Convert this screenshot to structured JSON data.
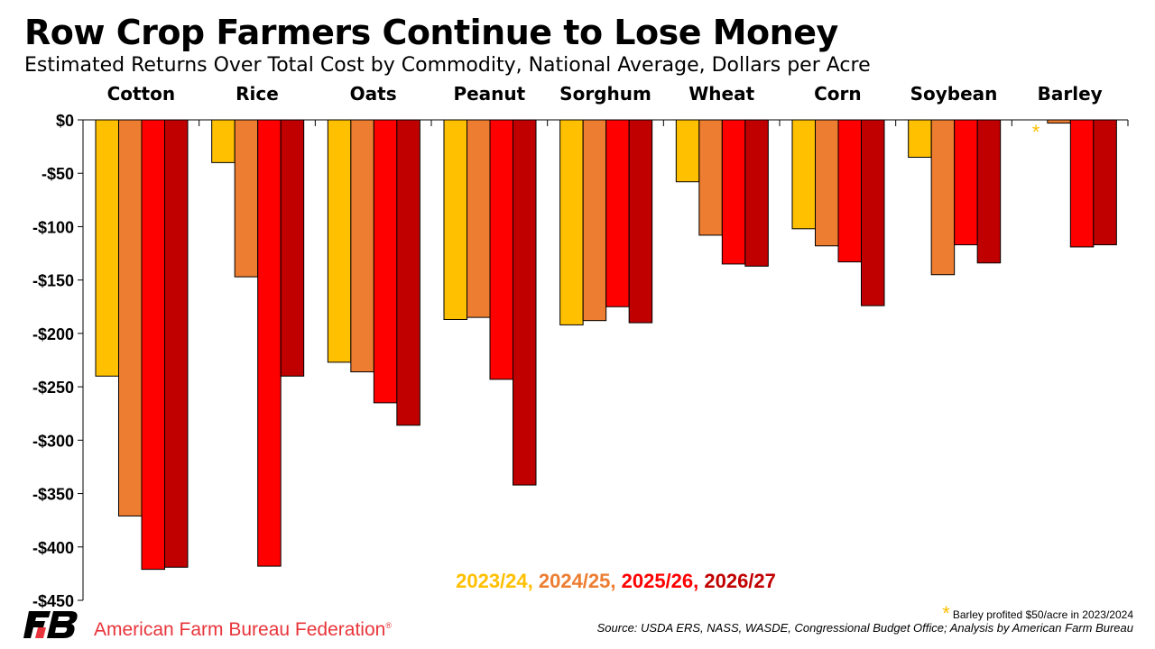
{
  "title": "Row Crop Farmers Continue to Lose Money",
  "subtitle": "Estimated Returns Over Total Cost by Commodity, National Average, Dollars per Acre",
  "chart_data": {
    "type": "bar",
    "categories": [
      "Cotton",
      "Rice",
      "Oats",
      "Peanut",
      "Sorghum",
      "Wheat",
      "Corn",
      "Soybean",
      "Barley"
    ],
    "series": [
      {
        "name": "2023/24",
        "color": "#ffc000",
        "values": [
          -240,
          -40,
          -227,
          -187,
          -192,
          -58,
          -102,
          -35,
          null
        ]
      },
      {
        "name": "2024/25",
        "color": "#ed7d31",
        "values": [
          -371,
          -147,
          -236,
          -185,
          -188,
          -108,
          -118,
          -145,
          -3
        ]
      },
      {
        "name": "2025/26",
        "color": "#ff0000",
        "values": [
          -421,
          -418,
          -265,
          -243,
          -175,
          -135,
          -133,
          -117,
          -119
        ]
      },
      {
        "name": "2026/27",
        "color": "#c00000",
        "values": [
          -419,
          -240,
          -286,
          -342,
          -190,
          -137,
          -174,
          -134,
          -117
        ]
      }
    ],
    "ylim": [
      -450,
      0
    ],
    "yticks": [
      0,
      -50,
      -100,
      -150,
      -200,
      -250,
      -300,
      -350,
      -400,
      -450
    ],
    "ytick_labels": [
      "$0",
      "-$50",
      "-$100",
      "-$150",
      "-$200",
      "-$250",
      "-$300",
      "-$350",
      "-$400",
      "-$450"
    ],
    "category_labels_position": "top",
    "legend_placement": "bottom-center",
    "grid": false,
    "annotation": {
      "symbol": "*",
      "category": "Barley",
      "series": "2023/24",
      "color": "#ffc000"
    }
  },
  "legend_separator": ", ",
  "footnote": "Barley profited $50/acre in 2023/2024",
  "footnote_symbol": "*",
  "source": "Source: USDA ERS, NASS, WASDE, Congressional Budget Office; Analysis by American Farm Bureau",
  "organization": "American Farm Bureau Federation",
  "organization_mark": "®",
  "logo_text": "FB"
}
